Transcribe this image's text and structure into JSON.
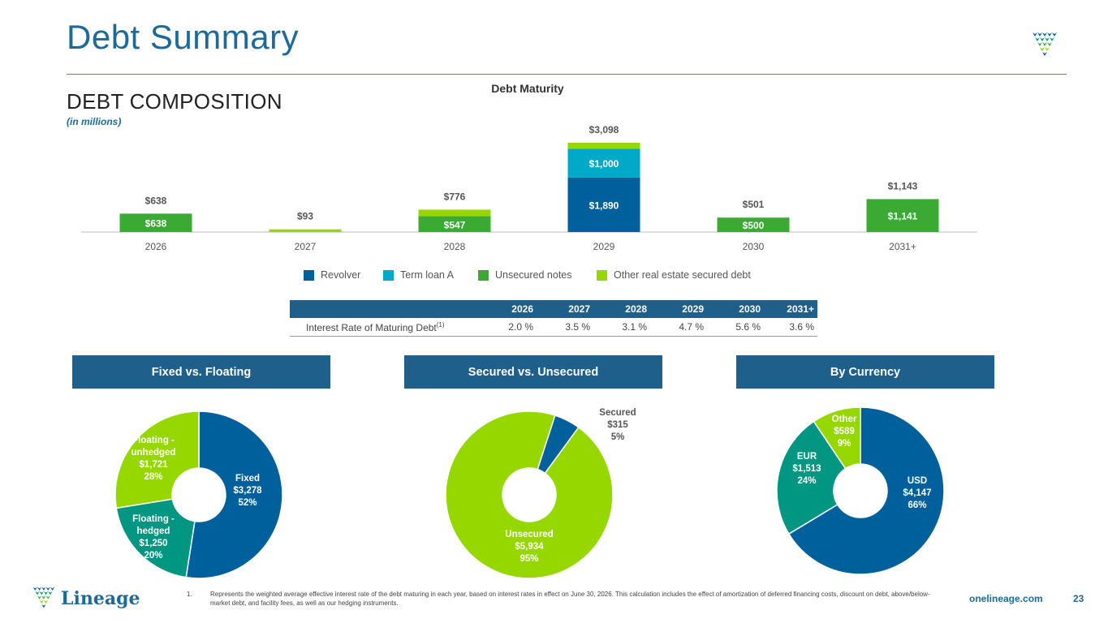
{
  "header": {
    "title": "Debt Summary",
    "section_title": "DEBT COMPOSITION",
    "units_note": "(in millions)"
  },
  "colors": {
    "revolver": "#00609c",
    "term_loan_a": "#00a9c7",
    "unsecured_notes": "#3aaa35",
    "other_secured": "#97d700",
    "teal": "#009681",
    "navy_header": "#1f5f8b",
    "title_blue": "#1d6a9a"
  },
  "chart_data": [
    {
      "type": "bar",
      "stacked": true,
      "title": "Debt Maturity",
      "categories": [
        "2026",
        "2027",
        "2028",
        "2029",
        "2030",
        "2031+"
      ],
      "series": [
        {
          "name": "Revolver",
          "values": [
            0,
            0,
            0,
            1890,
            0,
            0
          ],
          "labels": [
            "",
            "",
            "",
            "$1,890",
            "",
            ""
          ]
        },
        {
          "name": "Term loan A",
          "values": [
            0,
            0,
            0,
            1000,
            0,
            0
          ],
          "labels": [
            "",
            "",
            "",
            "$1,000",
            "",
            ""
          ]
        },
        {
          "name": "Unsecured notes",
          "values": [
            638,
            0,
            547,
            0,
            500,
            1141
          ],
          "labels": [
            "$638",
            "",
            "$547",
            "",
            "$500",
            "$1,141"
          ]
        },
        {
          "name": "Other real estate secured debt",
          "values": [
            0,
            93,
            229,
            208,
            1,
            2
          ],
          "labels": [
            "",
            "",
            "",
            "",
            "",
            ""
          ]
        }
      ],
      "totals": [
        "$638",
        "$93",
        "$776",
        "$3,098",
        "$501",
        "$1,143"
      ],
      "legend_position": "bottom",
      "grid": false
    },
    {
      "type": "pie",
      "title": "Fixed vs. Floating",
      "slices": [
        {
          "name": "Fixed",
          "value": 3278,
          "value_label": "$3,278",
          "pct_label": "52%",
          "color": "#00609c"
        },
        {
          "name": "Floating - hedged",
          "value": 1250,
          "value_label": "$1,250",
          "pct_label": "20%",
          "color": "#009681"
        },
        {
          "name": "Floating - unhedged",
          "value": 1721,
          "value_label": "$1,721",
          "pct_label": "28%",
          "color": "#97d700"
        }
      ]
    },
    {
      "type": "pie",
      "title": "Secured vs. Unsecured",
      "slices": [
        {
          "name": "Secured",
          "value": 315,
          "value_label": "$315",
          "pct_label": "5%",
          "color": "#00609c"
        },
        {
          "name": "Unsecured",
          "value": 5934,
          "value_label": "$5,934",
          "pct_label": "95%",
          "color": "#97d700"
        }
      ]
    },
    {
      "type": "pie",
      "title": "By Currency",
      "slices": [
        {
          "name": "USD",
          "value": 4147,
          "value_label": "$4,147",
          "pct_label": "66%",
          "color": "#00609c"
        },
        {
          "name": "EUR",
          "value": 1513,
          "value_label": "$1,513",
          "pct_label": "24%",
          "color": "#009681"
        },
        {
          "name": "Other",
          "value": 589,
          "value_label": "$589",
          "pct_label": "9%",
          "color": "#97d700"
        }
      ]
    }
  ],
  "rate_table": {
    "columns": [
      "2026",
      "2027",
      "2028",
      "2029",
      "2030",
      "2031+"
    ],
    "row_label": "Interest Rate of Maturing Debt",
    "row_label_sup": "(1)",
    "values": [
      "2.0 %",
      "3.5 %",
      "3.1 %",
      "4.7 %",
      "5.6 %",
      "3.6 %"
    ]
  },
  "pie_labels": {
    "fixed": [
      "Fixed",
      "$3,278",
      "52%"
    ],
    "floating_hedged": [
      "Floating -",
      "hedged",
      "$1,250",
      "20%"
    ],
    "floating_unhedged": [
      "Floating -",
      "unhedged",
      "$1,721",
      "28%"
    ],
    "secured": [
      "Secured",
      "$315",
      "5%"
    ],
    "unsecured": [
      "Unsecured",
      "$5,934",
      "95%"
    ],
    "usd": [
      "USD",
      "$4,147",
      "66%"
    ],
    "eur": [
      "EUR",
      "$1,513",
      "24%"
    ],
    "other": [
      "Other",
      "$589",
      "9%"
    ]
  },
  "footer": {
    "footnote_number": "1.",
    "footnote_text": "Represents the weighted average effective interest rate of the debt maturing in each year, based on interest rates in effect on June 30, 2026. This calculation includes the effect of amortization of deferred financing costs, discount on debt, above/below-market debt, and facility fees, as well as our hedging instruments.",
    "website": "onelineage.com",
    "page_number": "23",
    "brand_name": "Lineage"
  }
}
